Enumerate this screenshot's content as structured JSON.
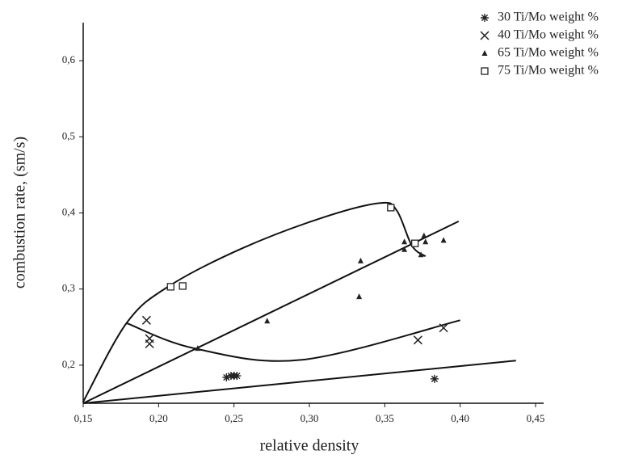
{
  "chart_data": {
    "type": "scatter",
    "x_label": "relative density",
    "y_label": "combustion rate, (sm/s)",
    "xlim": [
      0.15,
      0.45
    ],
    "ylim": [
      0.15,
      0.65
    ],
    "xticks": [
      {
        "value": 0.15,
        "label": "0,15"
      },
      {
        "value": 0.2,
        "label": "0,20"
      },
      {
        "value": 0.25,
        "label": "0,25"
      },
      {
        "value": 0.3,
        "label": "0,30"
      },
      {
        "value": 0.35,
        "label": "0,35"
      },
      {
        "value": 0.4,
        "label": "0,40"
      },
      {
        "value": 0.45,
        "label": "0,45"
      }
    ],
    "yticks": [
      {
        "value": 0.2,
        "label": "0,2"
      },
      {
        "value": 0.3,
        "label": "0,3"
      },
      {
        "value": 0.4,
        "label": "0,4"
      },
      {
        "value": 0.5,
        "label": "0,5"
      },
      {
        "value": 0.6,
        "label": "0,6"
      }
    ],
    "legend": "top-right",
    "series": [
      {
        "name": "30 Ti/Mo weight %",
        "color": "#222222",
        "marker": "asterisk",
        "x": [
          0.245,
          0.248,
          0.25,
          0.252,
          0.383
        ],
        "values": [
          0.184,
          0.186,
          0.186,
          0.186,
          0.182
        ]
      },
      {
        "name": "40 Ti/Mo weight %",
        "color": "#222222",
        "marker": "x",
        "x": [
          0.192,
          0.194,
          0.194,
          0.372,
          0.389
        ],
        "values": [
          0.259,
          0.235,
          0.228,
          0.233,
          0.249
        ]
      },
      {
        "name": "65 Ti/Mo weight %",
        "color": "#222222",
        "marker": "triangle",
        "x": [
          0.226,
          0.272,
          0.333,
          0.334,
          0.363,
          0.363,
          0.374,
          0.376,
          0.377,
          0.389
        ],
        "values": [
          0.222,
          0.258,
          0.29,
          0.337,
          0.362,
          0.352,
          0.345,
          0.37,
          0.362,
          0.364
        ]
      },
      {
        "name": "75 Ti/Mo weight %",
        "color": "#222222",
        "marker": "square",
        "x": [
          0.208,
          0.216,
          0.354,
          0.37
        ],
        "values": [
          0.303,
          0.304,
          0.407,
          0.36
        ]
      }
    ],
    "fits": [
      {
        "color": "#111111",
        "x": [
          0.15,
          0.437
        ],
        "values": [
          0.15,
          0.206
        ]
      },
      {
        "color": "#111111",
        "x": [
          0.15,
          0.399
        ],
        "values": [
          0.15,
          0.389
        ]
      },
      {
        "color": "#111111",
        "x": [
          0.179,
          0.224,
          0.295,
          0.4
        ],
        "values": [
          0.255,
          0.222,
          0.207,
          0.259
        ]
      },
      {
        "color": "#111111",
        "x": [
          0.15,
          0.179,
          0.207,
          0.256,
          0.309,
          0.347,
          0.358,
          0.368,
          0.377
        ],
        "values": [
          0.152,
          0.256,
          0.304,
          0.354,
          0.394,
          0.413,
          0.403,
          0.357,
          0.343
        ]
      }
    ]
  }
}
